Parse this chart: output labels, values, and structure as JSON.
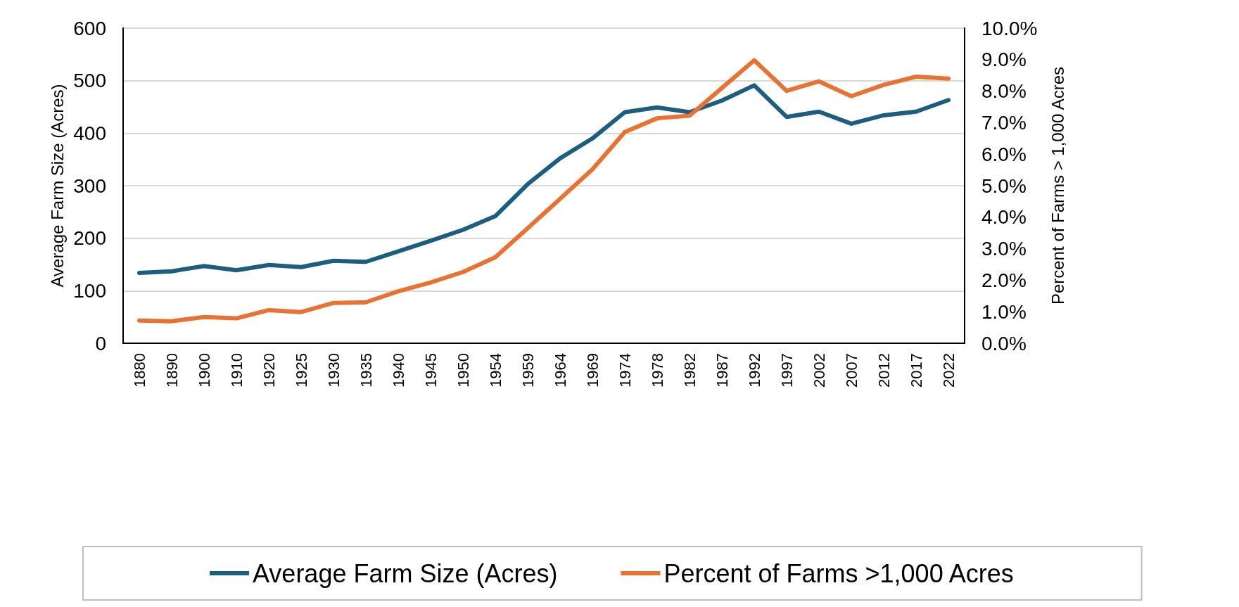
{
  "chart_data": {
    "type": "line",
    "categories": [
      "1880",
      "1890",
      "1900",
      "1910",
      "1920",
      "1925",
      "1930",
      "1935",
      "1940",
      "1945",
      "1950",
      "1954",
      "1959",
      "1964",
      "1969",
      "1974",
      "1978",
      "1982",
      "1987",
      "1992",
      "1997",
      "2002",
      "2007",
      "2012",
      "2017",
      "2022"
    ],
    "series": [
      {
        "name": "Average Farm Size (Acres)",
        "color": "#1b5e80",
        "values": [
          134,
          137,
          147,
          139,
          149,
          145,
          157,
          155,
          175,
          195,
          216,
          242,
          303,
          352,
          390,
          440,
          449,
          440,
          462,
          491,
          431,
          441,
          418,
          434,
          441,
          463
        ]
      },
      {
        "name": "Percent of Farms >1,000 Acres",
        "color": "#e97132",
        "axis": "y2",
        "values": [
          0.72,
          0.7,
          0.83,
          0.79,
          1.05,
          0.99,
          1.28,
          1.3,
          1.65,
          1.93,
          2.26,
          2.73,
          3.65,
          4.58,
          5.52,
          6.7,
          7.14,
          7.22,
          8.1,
          8.98,
          8.01,
          8.31,
          7.84,
          8.2,
          8.46,
          8.4
        ]
      }
    ],
    "ylabel": "Average Farm Size (Acres)",
    "y2label": "Percent of Farms > 1,000 Acres",
    "ylim": [
      0,
      600
    ],
    "yticks": [
      0,
      100,
      200,
      300,
      400,
      500,
      600
    ],
    "y2lim": [
      0,
      10
    ],
    "y2ticks": [
      {
        "value": 0,
        "label": "0.0%"
      },
      {
        "value": 1,
        "label": "1.0%"
      },
      {
        "value": 2,
        "label": "2.0%"
      },
      {
        "value": 3,
        "label": "3.0%"
      },
      {
        "value": 4,
        "label": "4.0%"
      },
      {
        "value": 5,
        "label": "5.0%"
      },
      {
        "value": 6,
        "label": "6.0%"
      },
      {
        "value": 7,
        "label": "7.0%"
      },
      {
        "value": 8,
        "label": "8.0%"
      },
      {
        "value": 9,
        "label": "9.0%"
      },
      {
        "value": 10,
        "label": "10.0%"
      }
    ],
    "grid": "y",
    "legend": "bottom",
    "marker": "none",
    "line_style": "solid"
  }
}
